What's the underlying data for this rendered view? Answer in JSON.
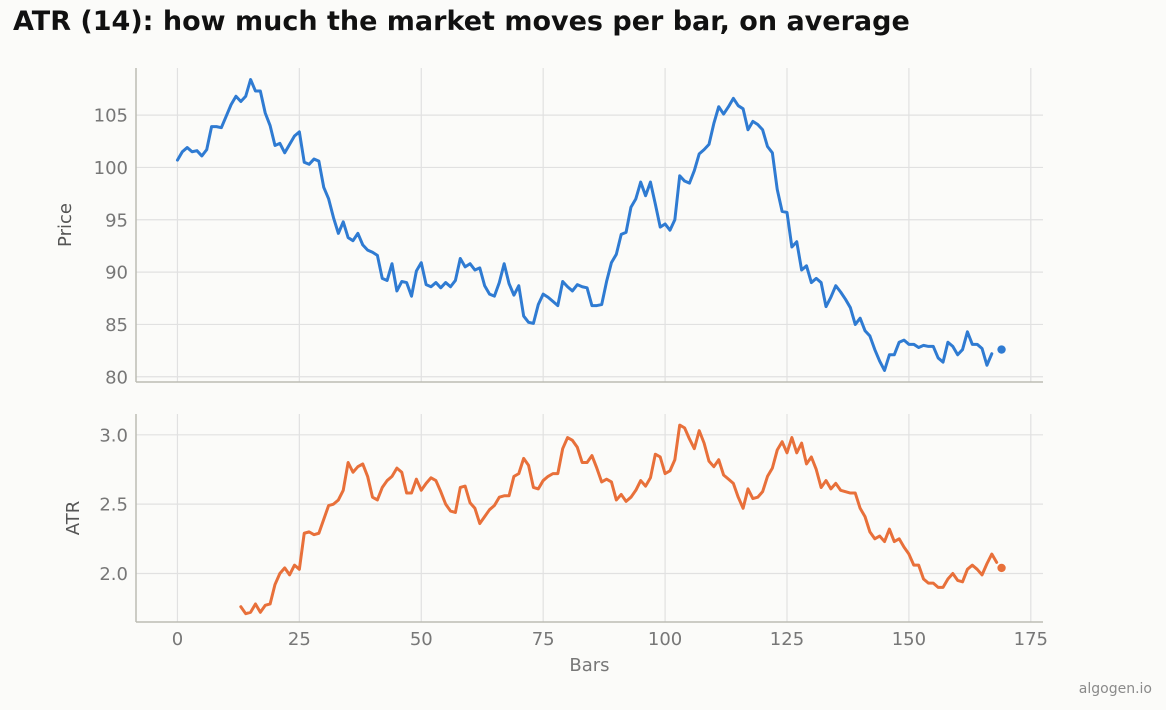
{
  "chart_data": {
    "title": "ATR (14): how much the market moves per bar, on average",
    "xlabel": "Bars",
    "x_ticks": [
      0,
      25,
      50,
      75,
      100,
      125,
      150,
      175
    ],
    "xlim": [
      -8.5,
      177.5
    ],
    "colors": {
      "background": "#fbfbf9",
      "grid": "#e1e1e1",
      "spine": "#bcbcb4",
      "price": "#2f7bd2",
      "atr": "#e8703a"
    },
    "panels": [
      {
        "type": "line",
        "ylabel": "Price",
        "ylim": [
          79.5,
          109.5
        ],
        "y_ticks": [
          80,
          85,
          90,
          95,
          100,
          105
        ],
        "grid": true,
        "series": [
          {
            "x_start": 0,
            "values": [
              100.7,
              101.5,
              101.9,
              101.5,
              101.6,
              101.1,
              101.7,
              103.9,
              103.9,
              103.8,
              104.9,
              106.0,
              106.8,
              106.3,
              106.8,
              108.4,
              107.3,
              107.3,
              105.2,
              104.0,
              102.1,
              102.3,
              101.4,
              102.2,
              103.0,
              103.4,
              100.5,
              100.3,
              100.8,
              100.6,
              98.1,
              97.0,
              95.2,
              93.7,
              94.8,
              93.3,
              93.0,
              93.7,
              92.6,
              92.1,
              91.9,
              91.6,
              89.4,
              89.2,
              90.8,
              88.2,
              89.1,
              89.0,
              87.7,
              90.1,
              90.9,
              88.8,
              88.6,
              89.0,
              88.5,
              89.0,
              88.6,
              89.2,
              91.3,
              90.5,
              90.8,
              90.2,
              90.4,
              88.7,
              87.9,
              87.7,
              89.0,
              90.8,
              88.9,
              87.8,
              88.7,
              85.8,
              85.2,
              85.1,
              86.9,
              87.9,
              87.6,
              87.2,
              86.8,
              89.1,
              88.6,
              88.2,
              88.8,
              88.6,
              88.5,
              86.8,
              86.8,
              86.9,
              89.1,
              90.9,
              91.7,
              93.6,
              93.8,
              96.2,
              97.0,
              98.6,
              97.3,
              98.6,
              96.5,
              94.3,
              94.6,
              94.0,
              95.0,
              99.2,
              98.7,
              98.5,
              99.7,
              101.3,
              101.7,
              102.2,
              104.2,
              105.8,
              105.1,
              105.8,
              106.6,
              105.9,
              105.6,
              103.6,
              104.4,
              104.1,
              103.6,
              102.0,
              101.4,
              97.9,
              95.8,
              95.7,
              92.4,
              92.9,
              90.2,
              90.6,
              89.0,
              89.4,
              89.0,
              86.7,
              87.6,
              88.7,
              88.1,
              87.4,
              86.6,
              85.0,
              85.6,
              84.4,
              83.9,
              82.6,
              81.5,
              80.6,
              82.1,
              82.1,
              83.3,
              83.5,
              83.1,
              83.1,
              82.8,
              83.0,
              82.9,
              82.9,
              81.8,
              81.4,
              83.3,
              82.9,
              82.1,
              82.6,
              84.3,
              83.1,
              83.1,
              82.7,
              81.1,
              82.2
            ],
            "last_point": {
              "x": 169,
              "y": 82.6
            }
          }
        ]
      },
      {
        "type": "line",
        "ylabel": "ATR",
        "ylim": [
          1.65,
          3.15
        ],
        "y_ticks": [
          2.0,
          2.5,
          3.0
        ],
        "y_tick_labels": [
          "2.0",
          "2.5",
          "3.0"
        ],
        "grid": true,
        "series": [
          {
            "x_start": 13,
            "values": [
              1.76,
              1.71,
              1.72,
              1.78,
              1.72,
              1.77,
              1.78,
              1.92,
              2.0,
              2.04,
              1.99,
              2.06,
              2.03,
              2.29,
              2.3,
              2.28,
              2.29,
              2.39,
              2.49,
              2.5,
              2.53,
              2.6,
              2.8,
              2.73,
              2.77,
              2.79,
              2.7,
              2.55,
              2.53,
              2.62,
              2.67,
              2.7,
              2.76,
              2.73,
              2.58,
              2.58,
              2.68,
              2.6,
              2.65,
              2.69,
              2.67,
              2.59,
              2.5,
              2.45,
              2.44,
              2.62,
              2.63,
              2.51,
              2.47,
              2.36,
              2.41,
              2.46,
              2.49,
              2.55,
              2.56,
              2.56,
              2.7,
              2.72,
              2.83,
              2.78,
              2.62,
              2.61,
              2.67,
              2.7,
              2.72,
              2.72,
              2.9,
              2.98,
              2.96,
              2.91,
              2.8,
              2.8,
              2.85,
              2.76,
              2.66,
              2.68,
              2.66,
              2.53,
              2.57,
              2.52,
              2.55,
              2.6,
              2.67,
              2.63,
              2.69,
              2.86,
              2.84,
              2.72,
              2.74,
              2.82,
              3.07,
              3.05,
              2.97,
              2.9,
              3.03,
              2.94,
              2.81,
              2.77,
              2.82,
              2.71,
              2.68,
              2.65,
              2.55,
              2.47,
              2.61,
              2.54,
              2.55,
              2.59,
              2.7,
              2.76,
              2.89,
              2.95,
              2.87,
              2.98,
              2.87,
              2.94,
              2.79,
              2.84,
              2.75,
              2.62,
              2.67,
              2.61,
              2.65,
              2.6,
              2.59,
              2.58,
              2.58,
              2.47,
              2.41,
              2.3,
              2.25,
              2.27,
              2.23,
              2.32,
              2.23,
              2.25,
              2.19,
              2.14,
              2.06,
              2.06,
              1.96,
              1.93,
              1.93,
              1.9,
              1.9,
              1.96,
              2.0,
              1.95,
              1.94,
              2.03,
              2.06,
              2.03,
              1.99,
              2.07,
              2.14,
              2.08
            ],
            "last_point": {
              "x": 169,
              "y": 2.04
            }
          }
        ]
      }
    ]
  },
  "footer": {
    "watermark": "algogen.io"
  }
}
